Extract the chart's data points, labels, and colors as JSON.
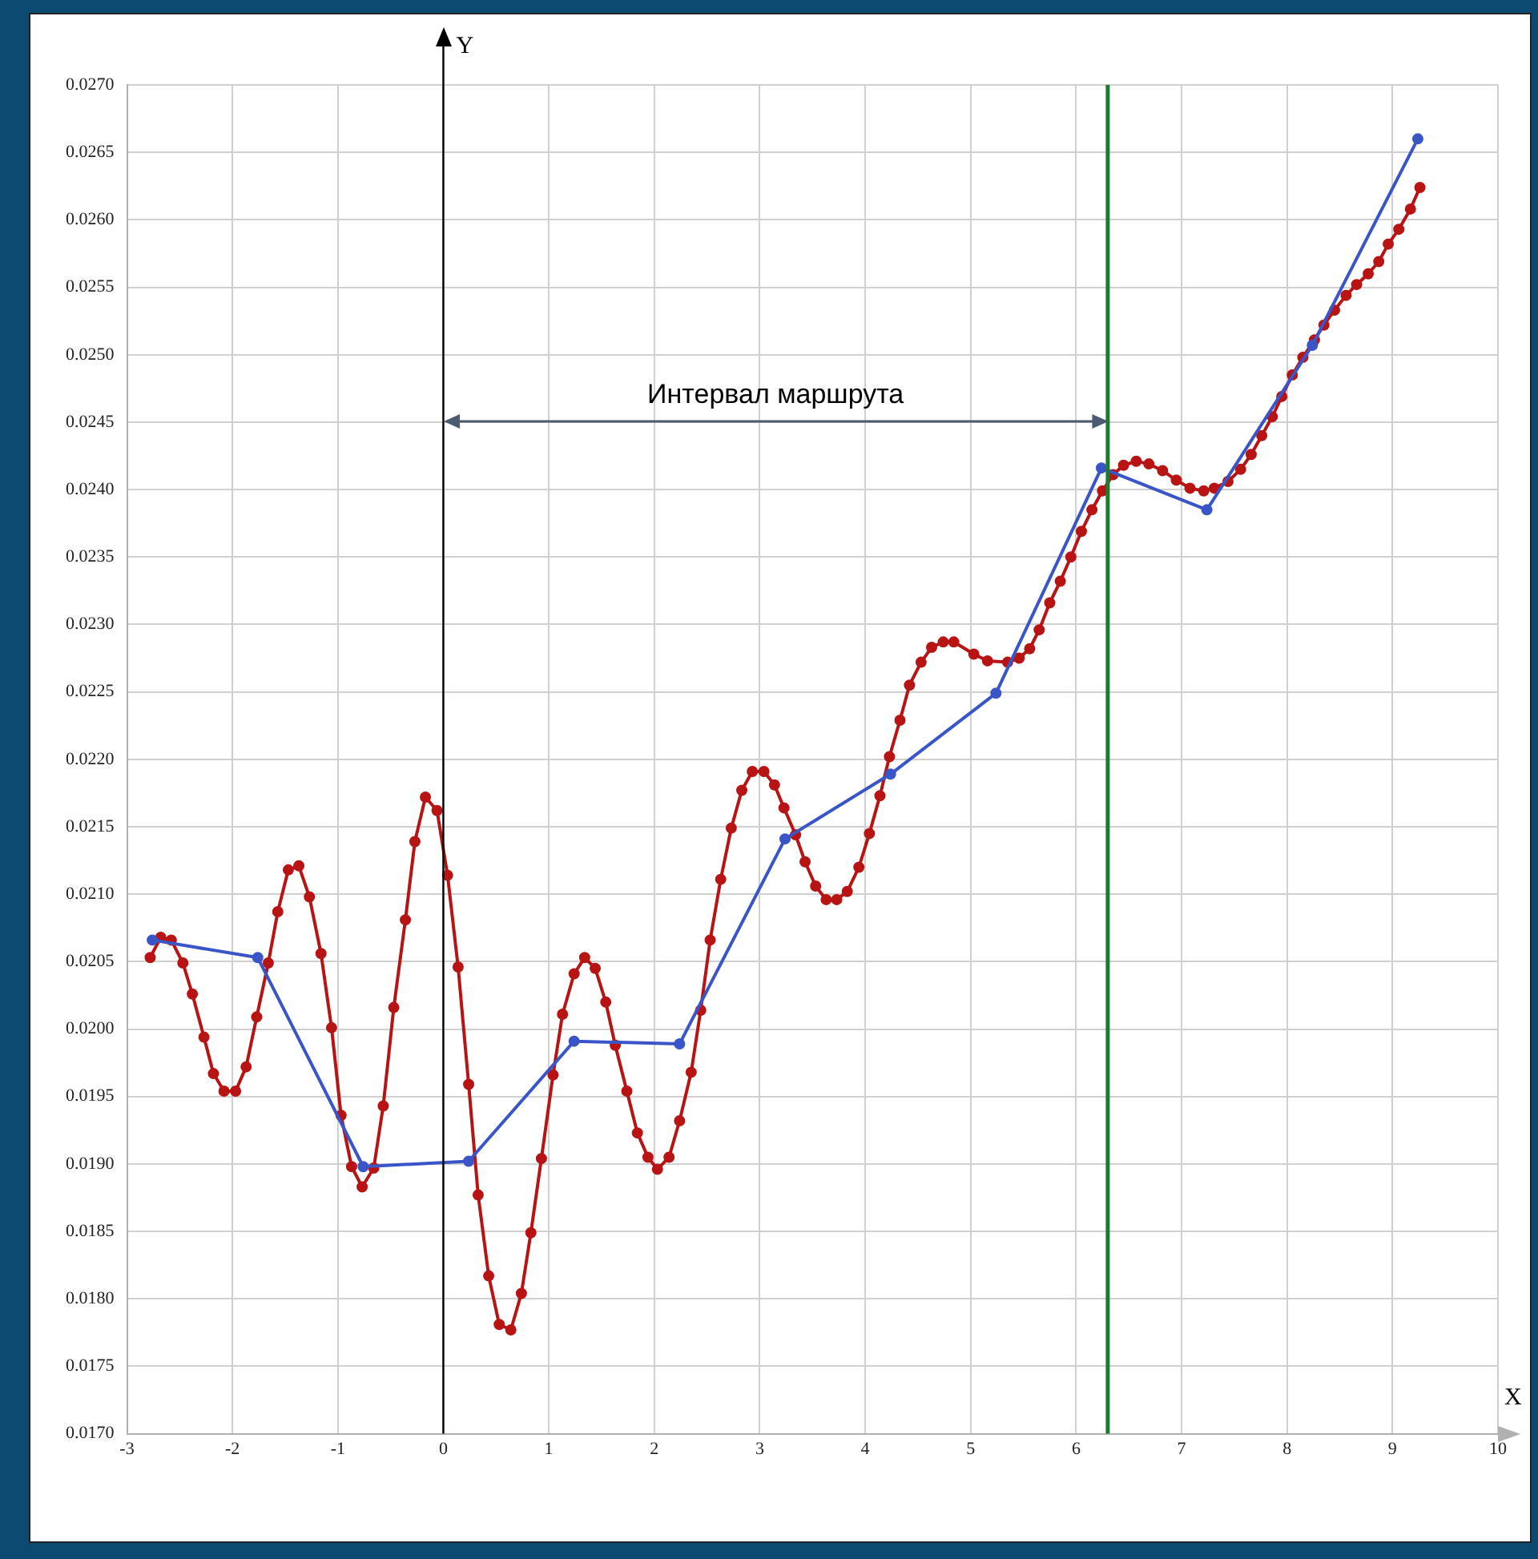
{
  "chart_data": {
    "type": "line",
    "xlabel": "X",
    "ylabel": "Y",
    "xlim": [
      -3,
      10
    ],
    "xticks": [
      -3,
      -2,
      -1,
      0,
      1,
      2,
      3,
      4,
      5,
      6,
      7,
      8,
      9,
      10
    ],
    "ylim": [
      0.017,
      0.027
    ],
    "yticks": [
      {
        "value": 0.017,
        "label": "0.0170"
      },
      {
        "value": 0.0175,
        "label": "0.0175"
      },
      {
        "value": 0.018,
        "label": "0.0180"
      },
      {
        "value": 0.0185,
        "label": "0.0185"
      },
      {
        "value": 0.019,
        "label": "0.0190"
      },
      {
        "value": 0.0195,
        "label": "0.0195"
      },
      {
        "value": 0.02,
        "label": "0.0200"
      },
      {
        "value": 0.0205,
        "label": "0.0205"
      },
      {
        "value": 0.021,
        "label": "0.0210"
      },
      {
        "value": 0.0215,
        "label": "0.0215"
      },
      {
        "value": 0.022,
        "label": "0.0220"
      },
      {
        "value": 0.0225,
        "label": "0.0225"
      },
      {
        "value": 0.023,
        "label": "0.0230"
      },
      {
        "value": 0.0235,
        "label": "0.0235"
      },
      {
        "value": 0.024,
        "label": "0.0240"
      },
      {
        "value": 0.0245,
        "label": "0.0245"
      },
      {
        "value": 0.025,
        "label": "0.0250"
      },
      {
        "value": 0.0255,
        "label": "0.0255"
      },
      {
        "value": 0.026,
        "label": "0.0260"
      },
      {
        "value": 0.0265,
        "label": "0.0265"
      },
      {
        "value": 0.027,
        "label": "0.0270"
      }
    ],
    "grid": true,
    "legend": false,
    "marker": "circle",
    "line_style": "solid",
    "series": [
      {
        "color": "#3a55c8",
        "x": [
          -2.76,
          -1.76,
          -0.76,
          0.24,
          1.24,
          2.24,
          3.24,
          4.24,
          5.24,
          6.24,
          7.24,
          8.24,
          9.24
        ],
        "values": [
          0.02066,
          0.02053,
          0.01898,
          0.01902,
          0.01991,
          0.01989,
          0.02141,
          0.02189,
          0.02249,
          0.02416,
          0.02385,
          0.02507,
          0.0266
        ]
      },
      {
        "color": "#b81414",
        "x": [
          -2.78,
          -2.68,
          -2.58,
          -2.47,
          -2.38,
          -2.27,
          -2.18,
          -2.08,
          -1.97,
          -1.87,
          -1.77,
          -1.66,
          -1.57,
          -1.47,
          -1.37,
          -1.27,
          -1.16,
          -1.06,
          -0.97,
          -0.87,
          -0.77,
          -0.66,
          -0.57,
          -0.47,
          -0.36,
          -0.27,
          -0.17,
          -0.06,
          0.04,
          0.14,
          0.24,
          0.33,
          0.43,
          0.53,
          0.64,
          0.74,
          0.83,
          0.93,
          1.04,
          1.13,
          1.24,
          1.34,
          1.44,
          1.54,
          1.63,
          1.74,
          1.84,
          1.94,
          2.03,
          2.14,
          2.24,
          2.35,
          2.44,
          2.53,
          2.63,
          2.73,
          2.83,
          2.93,
          3.04,
          3.14,
          3.23,
          3.34,
          3.43,
          3.53,
          3.63,
          3.73,
          3.83,
          3.94,
          4.04,
          4.14,
          4.23,
          4.33,
          4.42,
          4.53,
          4.63,
          4.74,
          4.84,
          5.03,
          5.16,
          5.35,
          5.46,
          5.56,
          5.65,
          5.75,
          5.85,
          5.95,
          6.05,
          6.15,
          6.25,
          6.35,
          6.45,
          6.57,
          6.69,
          6.82,
          6.95,
          7.08,
          7.21,
          7.31,
          7.44,
          7.56,
          7.66,
          7.76,
          7.86,
          7.95,
          8.05,
          8.15,
          8.26,
          8.35,
          8.45,
          8.56,
          8.66,
          8.77,
          8.87,
          8.96,
          9.06,
          9.17,
          9.26
        ],
        "values": [
          0.02053,
          0.02068,
          0.02066,
          0.02049,
          0.02026,
          0.01994,
          0.01967,
          0.01954,
          0.01954,
          0.01972,
          0.02009,
          0.02049,
          0.02087,
          0.02118,
          0.02121,
          0.02098,
          0.02056,
          0.02001,
          0.01936,
          0.01898,
          0.01883,
          0.01897,
          0.01943,
          0.02016,
          0.02081,
          0.02139,
          0.02172,
          0.02162,
          0.02114,
          0.02046,
          0.01959,
          0.01877,
          0.01817,
          0.01781,
          0.01777,
          0.01804,
          0.01849,
          0.01904,
          0.01966,
          0.02011,
          0.02041,
          0.02053,
          0.02045,
          0.0202,
          0.01988,
          0.01954,
          0.01923,
          0.01905,
          0.01896,
          0.01905,
          0.01932,
          0.01968,
          0.02014,
          0.02066,
          0.02111,
          0.02149,
          0.02177,
          0.02191,
          0.02191,
          0.02181,
          0.02164,
          0.02144,
          0.02124,
          0.02106,
          0.02096,
          0.02096,
          0.02102,
          0.0212,
          0.02145,
          0.02173,
          0.02202,
          0.02229,
          0.02255,
          0.02272,
          0.02283,
          0.02287,
          0.02287,
          0.02278,
          0.02273,
          0.02272,
          0.02275,
          0.02282,
          0.02296,
          0.02316,
          0.02332,
          0.0235,
          0.02369,
          0.02385,
          0.02399,
          0.02411,
          0.02418,
          0.02421,
          0.02419,
          0.02414,
          0.02407,
          0.02401,
          0.02399,
          0.02401,
          0.02406,
          0.02415,
          0.02426,
          0.0244,
          0.02454,
          0.02469,
          0.02485,
          0.02498,
          0.02511,
          0.02522,
          0.02533,
          0.02544,
          0.02552,
          0.0256,
          0.02569,
          0.02582,
          0.02593,
          0.02608,
          0.02624
        ]
      }
    ],
    "ref_lines": [
      {
        "axis": "x",
        "value": 0,
        "color": "#000000"
      },
      {
        "axis": "x",
        "value": 6.3,
        "color": "#1e7a2e"
      }
    ],
    "annotations": [
      "Интервал маршрута"
    ]
  }
}
